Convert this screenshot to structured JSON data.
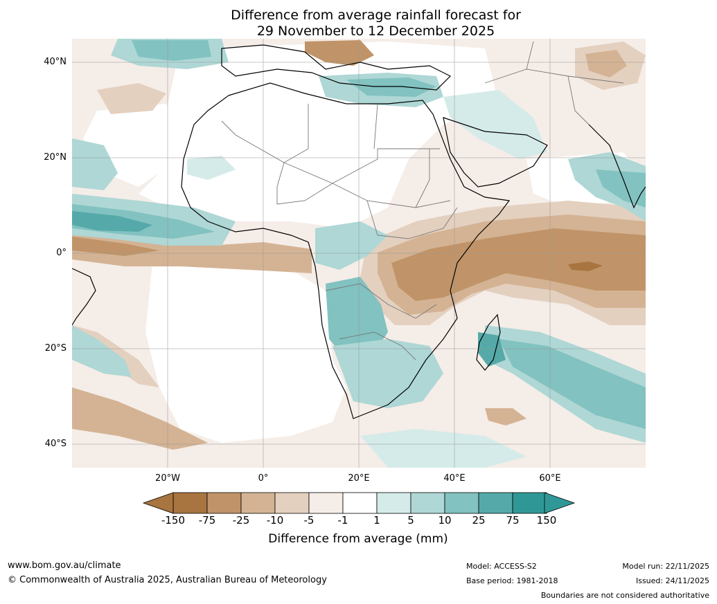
{
  "title_line1": "Difference from average rainfall forecast for",
  "title_line2": "29 November to 12 December 2025",
  "lat_labels": [
    "40°N",
    "20°N",
    "0°",
    "20°S",
    "40°S"
  ],
  "lon_labels": [
    "20°W",
    "0°",
    "20°E",
    "40°E",
    "60°E"
  ],
  "colorbar": {
    "ticks": [
      "-150",
      "-75",
      "-25",
      "-10",
      "-5",
      "-1",
      "1",
      "5",
      "10",
      "25",
      "75",
      "150"
    ],
    "colors": [
      "#a87440",
      "#c09468",
      "#d4b394",
      "#e4d0bf",
      "#f5ede8",
      "#ffffff",
      "#d5ebe9",
      "#aed7d5",
      "#82c2c0",
      "#55aaa9",
      "#2f9897"
    ],
    "label": "Difference from average (mm)"
  },
  "footer": {
    "url": "www.bom.gov.au/climate",
    "copyright": "© Commonwealth of Australia 2025, Australian Bureau of Meteorology",
    "model": "Model: ACCESS-S2",
    "base_period": "Base period: 1981-2018",
    "model_run": "Model run: 22/11/2025",
    "issued": "Issued: 24/11/2025",
    "disclaimer": "Boundaries are not considered authoritative"
  }
}
